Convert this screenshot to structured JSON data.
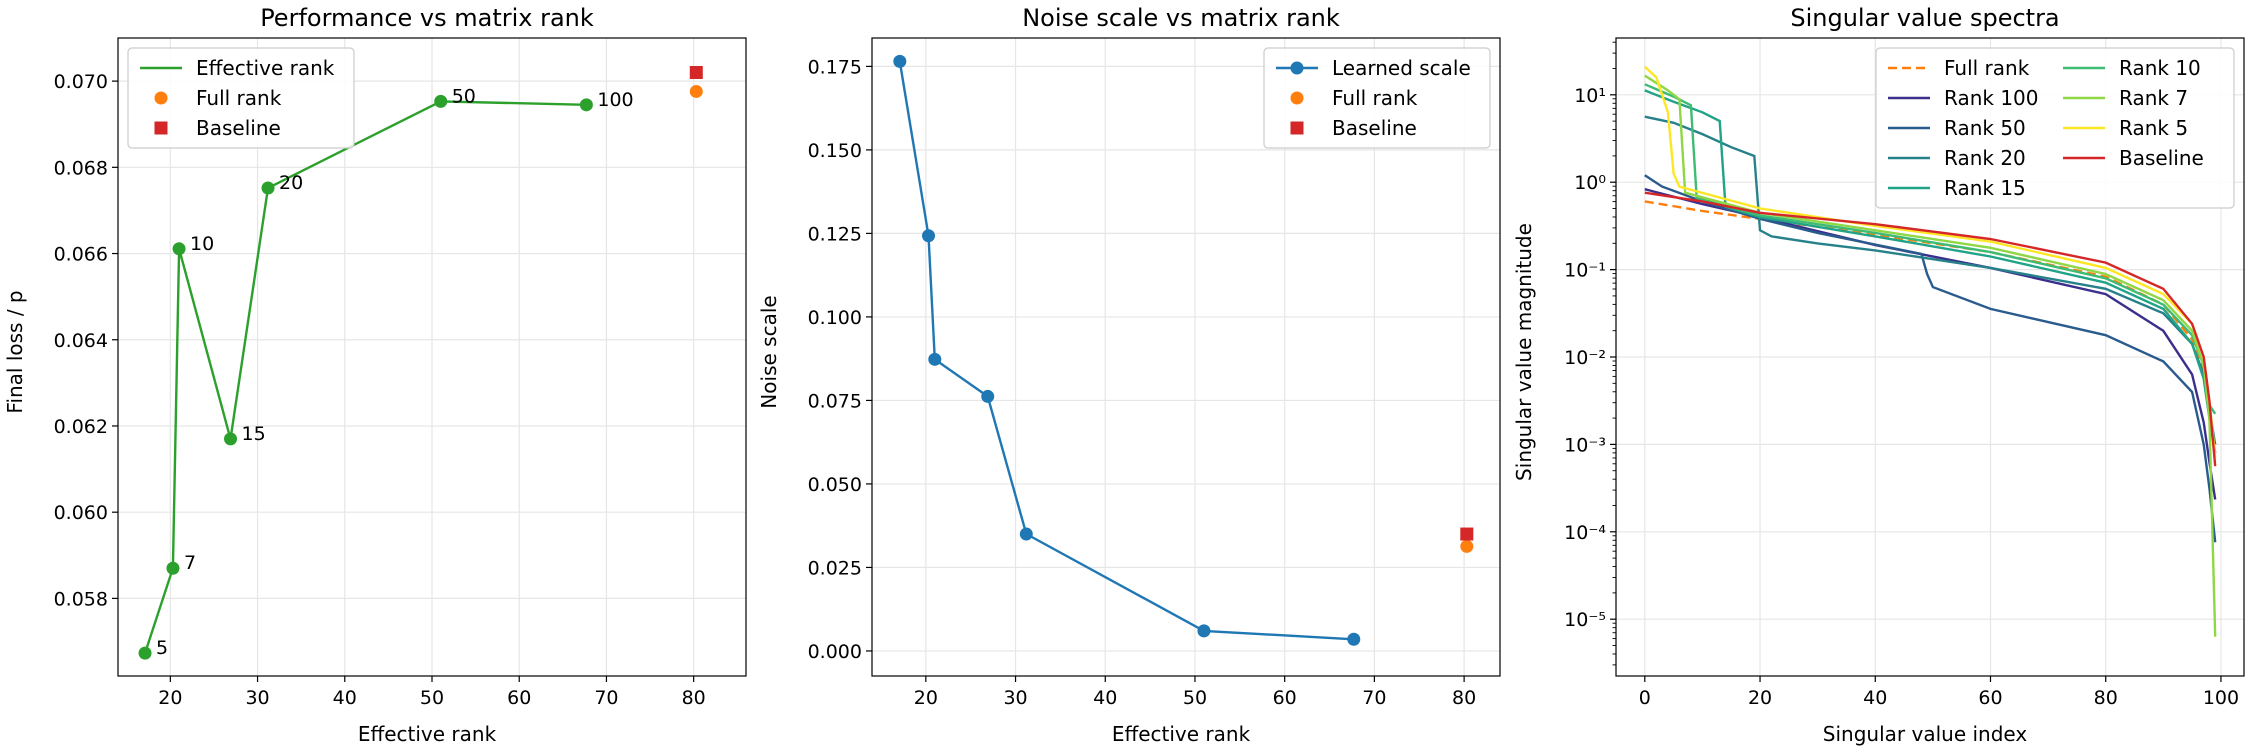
{
  "figure": {
    "background": "#ffffff"
  },
  "chart_data": [
    {
      "type": "line",
      "title": "Performance vs matrix rank",
      "xlabel": "Effective rank",
      "ylabel": "Final loss / p",
      "xlim": [
        14,
        86
      ],
      "ylim": [
        0.0562,
        0.071
      ],
      "xticks": [
        20,
        30,
        40,
        50,
        60,
        70,
        80
      ],
      "yticks": [
        0.058,
        0.06,
        0.062,
        0.064,
        0.066,
        0.068,
        0.07
      ],
      "ytick_format": 3,
      "grid": true,
      "legend": {
        "position": "top-left"
      },
      "series": [
        {
          "name": "Effective rank",
          "kind": "line-markers",
          "color": "#2ca02c",
          "x": [
            17.1,
            20.3,
            21.0,
            26.9,
            31.2,
            51.0,
            67.7
          ],
          "y": [
            0.05673,
            0.0587,
            0.06611,
            0.0617,
            0.06752,
            0.06953,
            0.06945
          ],
          "labels": [
            "5",
            "7",
            "10",
            "15",
            "20",
            "50",
            "100"
          ],
          "show_marker_in_legend": false
        },
        {
          "name": "Full rank",
          "kind": "point",
          "color": "#ff7f0e",
          "x": [
            80.3
          ],
          "y": [
            0.06976
          ]
        },
        {
          "name": "Baseline",
          "kind": "square",
          "color": "#d62728",
          "x": [
            80.3
          ],
          "y": [
            0.0702
          ]
        }
      ]
    },
    {
      "type": "line",
      "title": "Noise scale vs matrix rank",
      "xlabel": "Effective rank",
      "ylabel": "Noise scale",
      "xlim": [
        14,
        84
      ],
      "ylim": [
        -0.0075,
        0.1835
      ],
      "xticks": [
        20,
        30,
        40,
        50,
        60,
        70,
        80
      ],
      "yticks": [
        0.0,
        0.025,
        0.05,
        0.075,
        0.1,
        0.125,
        0.15,
        0.175
      ],
      "ytick_format": 3,
      "grid": true,
      "legend": {
        "position": "top-right"
      },
      "series": [
        {
          "name": "Learned scale",
          "kind": "line-markers",
          "color": "#1f77b4",
          "x": [
            17.1,
            20.3,
            21.0,
            26.9,
            31.2,
            51.0,
            67.7
          ],
          "y": [
            0.1765,
            0.1243,
            0.0873,
            0.0762,
            0.035,
            0.006,
            0.0035
          ],
          "show_marker_in_legend": true
        },
        {
          "name": "Full rank",
          "kind": "point",
          "color": "#ff7f0e",
          "x": [
            80.3
          ],
          "y": [
            0.0313
          ]
        },
        {
          "name": "Baseline",
          "kind": "square",
          "color": "#d62728",
          "x": [
            80.3
          ],
          "y": [
            0.035
          ]
        }
      ]
    },
    {
      "type": "line",
      "title": "Singular value spectra",
      "xlabel": "Singular value index",
      "ylabel": "Singular value magnitude",
      "xlim": [
        -5,
        104
      ],
      "ylog": true,
      "ylim_log10": [
        -5.65,
        1.65
      ],
      "xticks": [
        0,
        20,
        40,
        60,
        80,
        100
      ],
      "yticks_log10": [
        -5,
        -4,
        -3,
        -2,
        -1,
        0,
        1
      ],
      "grid": true,
      "legend": {
        "position": "top-right",
        "columns": 2
      },
      "series": [
        {
          "name": "Full rank",
          "color": "#ff7f0e",
          "dashed": true,
          "pts": [
            [
              0,
              -0.22
            ],
            [
              10,
              -0.33
            ],
            [
              20,
              -0.42
            ],
            [
              40,
              -0.6
            ],
            [
              60,
              -0.8
            ],
            [
              80,
              -1.08
            ],
            [
              90,
              -1.4
            ],
            [
              95,
              -1.8
            ],
            [
              97,
              -2.15
            ],
            [
              98,
              -2.7
            ],
            [
              99,
              -3.1
            ]
          ]
        },
        {
          "name": "Rank 100",
          "color": "#3b2f8c",
          "pts": [
            [
              0,
              -0.08
            ],
            [
              10,
              -0.25
            ],
            [
              20,
              -0.4
            ],
            [
              40,
              -0.72
            ],
            [
              60,
              -0.98
            ],
            [
              80,
              -1.28
            ],
            [
              90,
              -1.7
            ],
            [
              95,
              -2.2
            ],
            [
              97,
              -2.75
            ],
            [
              98,
              -3.2
            ],
            [
              99,
              -3.63
            ]
          ]
        },
        {
          "name": "Rank 50",
          "color": "#2a5b8d",
          "pts": [
            [
              0,
              0.08
            ],
            [
              3,
              -0.05
            ],
            [
              10,
              -0.22
            ],
            [
              20,
              -0.42
            ],
            [
              30,
              -0.58
            ],
            [
              45,
              -0.78
            ],
            [
              48,
              -0.82
            ],
            [
              49,
              -1.05
            ],
            [
              50,
              -1.2
            ],
            [
              60,
              -1.45
            ],
            [
              80,
              -1.75
            ],
            [
              90,
              -2.05
            ],
            [
              95,
              -2.4
            ],
            [
              97,
              -3.0
            ],
            [
              98,
              -3.5
            ],
            [
              99,
              -4.12
            ]
          ]
        },
        {
          "name": "Rank 20",
          "color": "#26818a",
          "pts": [
            [
              0,
              0.75
            ],
            [
              5,
              0.68
            ],
            [
              10,
              0.55
            ],
            [
              15,
              0.4
            ],
            [
              19,
              0.3
            ],
            [
              20,
              -0.55
            ],
            [
              22,
              -0.62
            ],
            [
              30,
              -0.7
            ],
            [
              40,
              -0.78
            ],
            [
              60,
              -0.98
            ],
            [
              80,
              -1.22
            ],
            [
              90,
              -1.5
            ],
            [
              95,
              -1.85
            ],
            [
              97,
              -2.2
            ],
            [
              98,
              -2.6
            ],
            [
              99,
              -3.0
            ]
          ]
        },
        {
          "name": "Rank 15",
          "color": "#20a387",
          "pts": [
            [
              0,
              1.05
            ],
            [
              5,
              0.92
            ],
            [
              10,
              0.8
            ],
            [
              13,
              0.7
            ],
            [
              14,
              -0.28
            ],
            [
              20,
              -0.4
            ],
            [
              40,
              -0.62
            ],
            [
              60,
              -0.85
            ],
            [
              80,
              -1.15
            ],
            [
              90,
              -1.45
            ],
            [
              95,
              -1.85
            ],
            [
              97,
              -2.25
            ],
            [
              98,
              -2.7
            ],
            [
              99,
              -3.1
            ]
          ]
        },
        {
          "name": "Rank 10",
          "color": "#3fbc73",
          "pts": [
            [
              0,
              1.12
            ],
            [
              5,
              0.98
            ],
            [
              8,
              0.88
            ],
            [
              9,
              -0.18
            ],
            [
              20,
              -0.38
            ],
            [
              40,
              -0.58
            ],
            [
              60,
              -0.8
            ],
            [
              80,
              -1.1
            ],
            [
              90,
              -1.4
            ],
            [
              95,
              -1.75
            ],
            [
              97,
              -2.1
            ],
            [
              98,
              -2.55
            ],
            [
              99,
              -2.65
            ]
          ]
        },
        {
          "name": "Rank 7",
          "color": "#8fd744",
          "pts": [
            [
              0,
              1.22
            ],
            [
              4,
              1.05
            ],
            [
              6,
              0.95
            ],
            [
              7,
              -0.12
            ],
            [
              20,
              -0.35
            ],
            [
              40,
              -0.55
            ],
            [
              60,
              -0.75
            ],
            [
              80,
              -1.05
            ],
            [
              90,
              -1.35
            ],
            [
              95,
              -1.7
            ],
            [
              97,
              -2.1
            ],
            [
              98,
              -2.7
            ],
            [
              99,
              -5.2
            ]
          ]
        },
        {
          "name": "Rank 5",
          "color": "#fde725",
          "pts": [
            [
              0,
              1.32
            ],
            [
              2,
              1.2
            ],
            [
              4,
              0.8
            ],
            [
              5,
              0.1
            ],
            [
              6,
              -0.05
            ],
            [
              20,
              -0.3
            ],
            [
              40,
              -0.5
            ],
            [
              60,
              -0.68
            ],
            [
              80,
              -0.98
            ],
            [
              90,
              -1.28
            ],
            [
              95,
              -1.62
            ],
            [
              97,
              -2.0
            ],
            [
              98,
              -2.5
            ],
            [
              99,
              -3.15
            ]
          ]
        },
        {
          "name": "Baseline",
          "color": "#d62728",
          "pts": [
            [
              0,
              -0.12
            ],
            [
              10,
              -0.22
            ],
            [
              20,
              -0.35
            ],
            [
              40,
              -0.48
            ],
            [
              60,
              -0.65
            ],
            [
              80,
              -0.92
            ],
            [
              90,
              -1.22
            ],
            [
              95,
              -1.62
            ],
            [
              97,
              -2.0
            ],
            [
              98,
              -2.5
            ],
            [
              99,
              -3.25
            ]
          ]
        }
      ]
    }
  ]
}
